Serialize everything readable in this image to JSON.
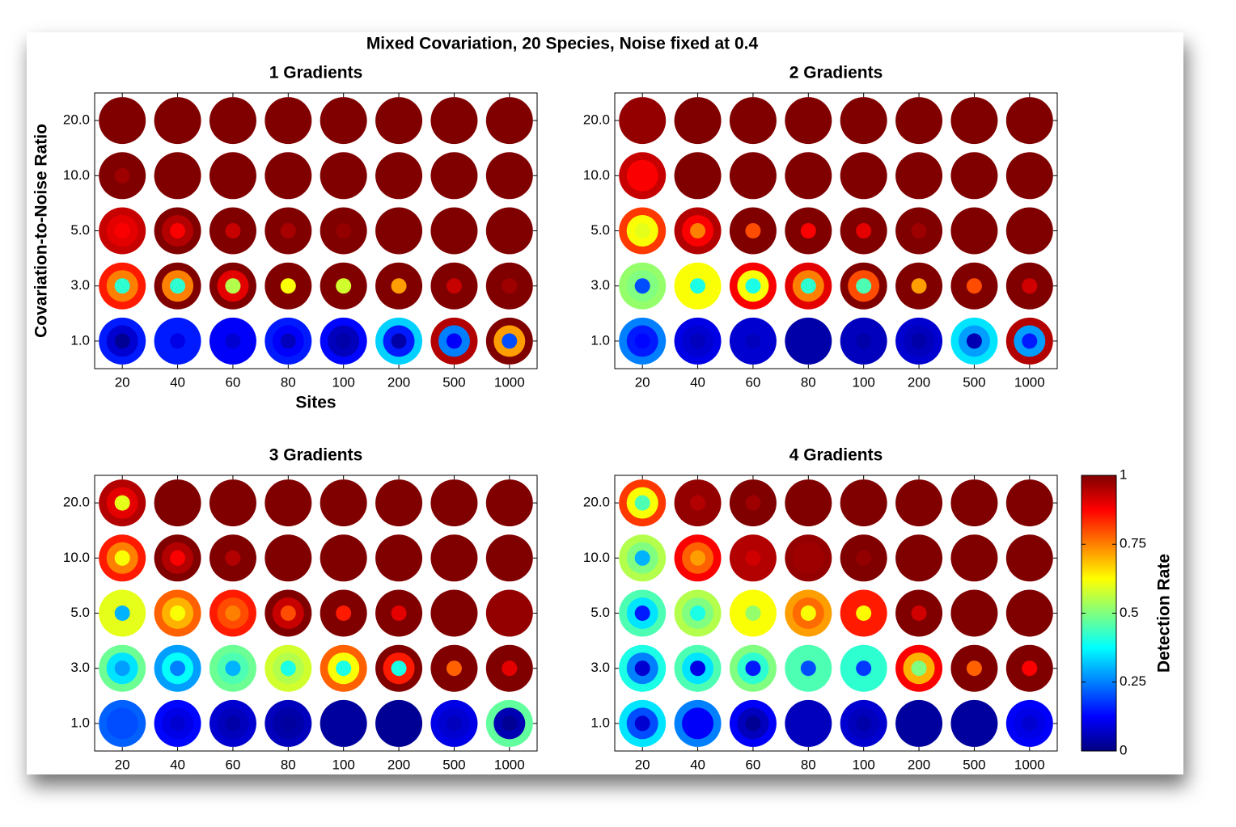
{
  "title": "Mixed Covariation, 20 Species, Noise fixed at 0.4",
  "colorbar": {
    "label": "Detection Rate",
    "colormap": "jet",
    "lim": [
      0,
      1
    ],
    "ticks": [
      0,
      0.25,
      0.5,
      0.75,
      1
    ]
  },
  "chart_data": [
    {
      "type": "dot-matrix",
      "title": "1 Gradients",
      "xlabel": "Sites",
      "ylabel": "Covariation-to-Noise Ratio",
      "categories": [
        "20",
        "40",
        "60",
        "80",
        "100",
        "200",
        "500",
        "1000"
      ],
      "y_categories": [
        "20.0",
        "10.0",
        "5.0",
        "3.0",
        "1.0"
      ],
      "values": [
        [
          [
            1,
            1,
            1
          ],
          [
            1,
            1,
            1
          ],
          [
            1,
            1,
            1
          ],
          [
            1,
            1,
            1
          ],
          [
            1,
            1,
            1
          ],
          [
            1,
            1,
            1
          ],
          [
            1,
            1,
            1
          ],
          [
            1,
            1,
            1
          ]
        ],
        [
          [
            1,
            1,
            0.97
          ],
          [
            1,
            1,
            1
          ],
          [
            1,
            1,
            1
          ],
          [
            1,
            1,
            1
          ],
          [
            1,
            1,
            1
          ],
          [
            1,
            1,
            1
          ],
          [
            1,
            1,
            1
          ],
          [
            1,
            1,
            1
          ]
        ],
        [
          [
            0.93,
            0.9,
            0.88
          ],
          [
            1,
            0.95,
            0.88
          ],
          [
            1,
            1,
            0.93
          ],
          [
            1,
            1,
            0.96
          ],
          [
            1,
            1,
            0.98
          ],
          [
            1,
            1,
            1
          ],
          [
            1,
            1,
            1
          ],
          [
            1,
            1,
            1
          ]
        ],
        [
          [
            0.85,
            0.75,
            0.42
          ],
          [
            1,
            0.75,
            0.42
          ],
          [
            1,
            0.9,
            0.55
          ],
          [
            1,
            1,
            0.62
          ],
          [
            1,
            1,
            0.58
          ],
          [
            1,
            1,
            0.72
          ],
          [
            1,
            1,
            0.93
          ],
          [
            1,
            1,
            0.97
          ]
        ],
        [
          [
            0.15,
            0.08,
            0.02
          ],
          [
            0.15,
            0.15,
            0.1
          ],
          [
            0.12,
            0.12,
            0.08
          ],
          [
            0.15,
            0.12,
            0.06
          ],
          [
            0.13,
            0.06,
            0.04
          ],
          [
            0.33,
            0.15,
            0.04
          ],
          [
            0.95,
            0.25,
            0.12
          ],
          [
            1,
            0.72,
            0.2
          ]
        ]
      ]
    },
    {
      "type": "dot-matrix",
      "title": "2 Gradients",
      "categories": [
        "20",
        "40",
        "60",
        "80",
        "100",
        "200",
        "500",
        "1000"
      ],
      "y_categories": [
        "20.0",
        "10.0",
        "5.0",
        "3.0",
        "1.0"
      ],
      "values": [
        [
          [
            0.98,
            0.98,
            0.98
          ],
          [
            1,
            1,
            1
          ],
          [
            1,
            1,
            1
          ],
          [
            1,
            1,
            1
          ],
          [
            1,
            1,
            1
          ],
          [
            1,
            1,
            1
          ],
          [
            1,
            1,
            1
          ],
          [
            1,
            1,
            1
          ]
        ],
        [
          [
            0.93,
            0.88,
            0.88
          ],
          [
            1,
            1,
            1
          ],
          [
            1,
            1,
            1
          ],
          [
            1,
            1,
            1
          ],
          [
            1,
            1,
            1
          ],
          [
            1,
            1,
            1
          ],
          [
            1,
            1,
            1
          ],
          [
            1,
            1,
            1
          ]
        ],
        [
          [
            0.82,
            0.62,
            0.6
          ],
          [
            0.95,
            0.88,
            0.75
          ],
          [
            1,
            1,
            0.8
          ],
          [
            1,
            1,
            0.88
          ],
          [
            1,
            1,
            0.9
          ],
          [
            1,
            1,
            0.97
          ],
          [
            1,
            1,
            1
          ],
          [
            1,
            1,
            1
          ]
        ],
        [
          [
            0.52,
            0.5,
            0.2
          ],
          [
            0.62,
            0.62,
            0.4
          ],
          [
            0.88,
            0.62,
            0.4
          ],
          [
            0.9,
            0.75,
            0.42
          ],
          [
            1,
            0.8,
            0.45
          ],
          [
            1,
            1,
            0.72
          ],
          [
            1,
            1,
            0.8
          ],
          [
            1,
            1,
            0.92
          ]
        ],
        [
          [
            0.25,
            0.15,
            0.13
          ],
          [
            0.1,
            0.08,
            0.06
          ],
          [
            0.08,
            0.08,
            0.06
          ],
          [
            0.04,
            0.04,
            0.04
          ],
          [
            0.06,
            0.06,
            0.04
          ],
          [
            0.08,
            0.06,
            0.04
          ],
          [
            0.35,
            0.28,
            0.05
          ],
          [
            0.95,
            0.28,
            0.15
          ]
        ]
      ]
    },
    {
      "type": "dot-matrix",
      "title": "3 Gradients",
      "categories": [
        "20",
        "40",
        "60",
        "80",
        "100",
        "200",
        "500",
        "1000"
      ],
      "y_categories": [
        "20.0",
        "10.0",
        "5.0",
        "3.0",
        "1.0"
      ],
      "values": [
        [
          [
            0.95,
            0.9,
            0.6
          ],
          [
            1,
            1,
            1
          ],
          [
            1,
            1,
            1
          ],
          [
            1,
            1,
            1
          ],
          [
            1,
            1,
            1
          ],
          [
            1,
            1,
            1
          ],
          [
            1,
            1,
            1
          ],
          [
            1,
            1,
            1
          ]
        ],
        [
          [
            0.85,
            0.75,
            0.62
          ],
          [
            1,
            0.95,
            0.88
          ],
          [
            1,
            1,
            0.95
          ],
          [
            1,
            1,
            1
          ],
          [
            1,
            1,
            1
          ],
          [
            1,
            1,
            1
          ],
          [
            1,
            1,
            1
          ],
          [
            1,
            1,
            1
          ]
        ],
        [
          [
            0.6,
            0.6,
            0.3
          ],
          [
            0.78,
            0.7,
            0.62
          ],
          [
            0.85,
            0.8,
            0.75
          ],
          [
            1,
            0.93,
            0.8
          ],
          [
            1,
            1,
            0.85
          ],
          [
            1,
            1,
            0.9
          ],
          [
            1,
            1,
            1
          ],
          [
            0.98,
            0.98,
            0.98
          ]
        ],
        [
          [
            0.48,
            0.35,
            0.28
          ],
          [
            0.28,
            0.38,
            0.25
          ],
          [
            0.48,
            0.45,
            0.3
          ],
          [
            0.58,
            0.55,
            0.4
          ],
          [
            0.78,
            0.62,
            0.4
          ],
          [
            1,
            0.85,
            0.4
          ],
          [
            1,
            1,
            0.78
          ],
          [
            1,
            1,
            0.9
          ]
        ],
        [
          [
            0.22,
            0.2,
            0.2
          ],
          [
            0.13,
            0.1,
            0.08
          ],
          [
            0.08,
            0.06,
            0.04
          ],
          [
            0.06,
            0.04,
            0.03
          ],
          [
            0.03,
            0.03,
            0.03
          ],
          [
            0.02,
            0.02,
            0.02
          ],
          [
            0.1,
            0.08,
            0.06
          ],
          [
            0.47,
            0.05,
            0.02
          ]
        ]
      ]
    },
    {
      "type": "dot-matrix",
      "title": "4 Gradients",
      "categories": [
        "20",
        "40",
        "60",
        "80",
        "100",
        "200",
        "500",
        "1000"
      ],
      "y_categories": [
        "20.0",
        "10.0",
        "5.0",
        "3.0",
        "1.0"
      ],
      "values": [
        [
          [
            0.82,
            0.62,
            0.45
          ],
          [
            0.98,
            0.98,
            0.95
          ],
          [
            1,
            1,
            0.97
          ],
          [
            1,
            1,
            1
          ],
          [
            1,
            1,
            1
          ],
          [
            1,
            1,
            1
          ],
          [
            1,
            1,
            1
          ],
          [
            1,
            1,
            1
          ]
        ],
        [
          [
            0.55,
            0.5,
            0.3
          ],
          [
            0.88,
            0.78,
            0.72
          ],
          [
            0.95,
            0.95,
            0.92
          ],
          [
            0.98,
            0.97,
            0.97
          ],
          [
            1,
            1,
            0.98
          ],
          [
            1,
            1,
            1
          ],
          [
            1,
            1,
            1
          ],
          [
            1,
            1,
            1
          ]
        ],
        [
          [
            0.45,
            0.35,
            0.15
          ],
          [
            0.55,
            0.5,
            0.4
          ],
          [
            0.62,
            0.62,
            0.52
          ],
          [
            0.72,
            0.77,
            0.62
          ],
          [
            0.85,
            0.85,
            0.63
          ],
          [
            1,
            1,
            0.92
          ],
          [
            1,
            1,
            1
          ],
          [
            1,
            1,
            1
          ]
        ],
        [
          [
            0.4,
            0.25,
            0.08
          ],
          [
            0.45,
            0.35,
            0.1
          ],
          [
            0.5,
            0.42,
            0.15
          ],
          [
            0.45,
            0.45,
            0.2
          ],
          [
            0.42,
            0.42,
            0.18
          ],
          [
            0.88,
            0.7,
            0.5
          ],
          [
            1,
            1,
            0.78
          ],
          [
            1,
            1,
            0.88
          ]
        ],
        [
          [
            0.35,
            0.2,
            0.08
          ],
          [
            0.25,
            0.12,
            0.12
          ],
          [
            0.12,
            0.06,
            0.02
          ],
          [
            0.06,
            0.06,
            0.06
          ],
          [
            0.08,
            0.06,
            0.04
          ],
          [
            0.03,
            0.03,
            0.03
          ],
          [
            0.03,
            0.03,
            0.03
          ],
          [
            0.12,
            0.1,
            0.08
          ]
        ]
      ]
    }
  ]
}
